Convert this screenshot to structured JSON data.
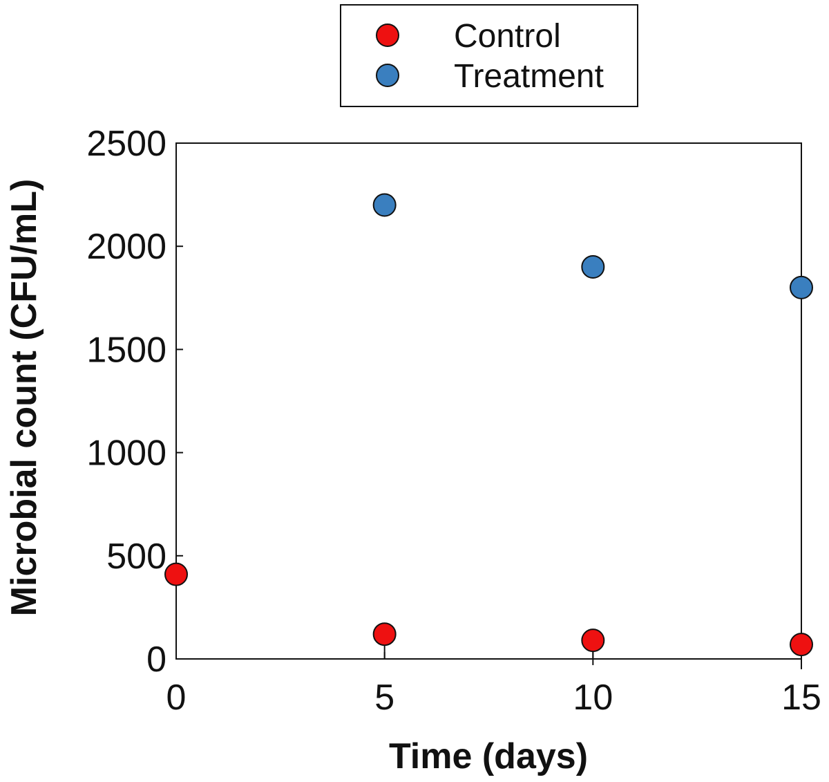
{
  "chart_data": {
    "type": "scatter",
    "title": "",
    "xlabel": "Time (days)",
    "ylabel": "Microbial count (CFU/mL)",
    "xlim": [
      0,
      15
    ],
    "ylim": [
      0,
      2500
    ],
    "xticks": [
      "0",
      "5",
      "10",
      "15"
    ],
    "yticks": [
      "0",
      "500",
      "1000",
      "1500",
      "2000",
      "2500"
    ],
    "grid": false,
    "legend_position": "top-center",
    "series": [
      {
        "name": "Control",
        "color": "#ee1111",
        "points": [
          {
            "x": 0,
            "y": 410
          },
          {
            "x": 5,
            "y": 120,
            "err": 20
          },
          {
            "x": 10,
            "y": 90,
            "err": 20
          },
          {
            "x": 15,
            "y": 70,
            "err": 20
          }
        ]
      },
      {
        "name": "Treatment",
        "color": "#3a7fbf",
        "points": [
          {
            "x": 5,
            "y": 2200
          },
          {
            "x": 10,
            "y": 1900
          },
          {
            "x": 15,
            "y": 1800
          }
        ]
      }
    ]
  }
}
